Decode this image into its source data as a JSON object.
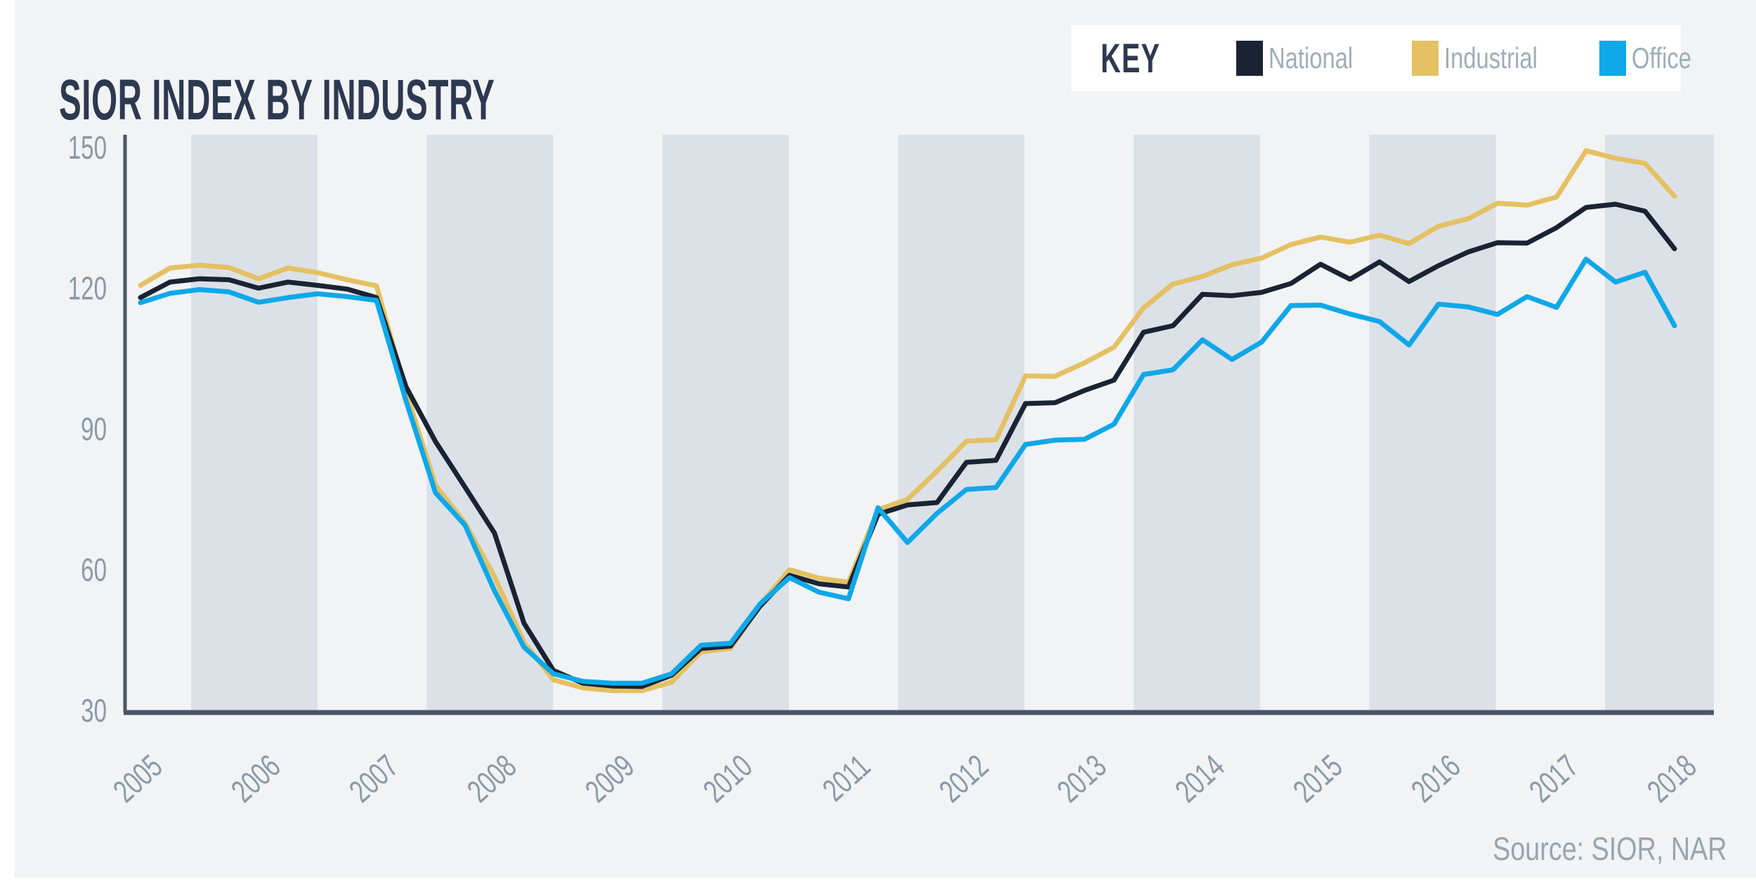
{
  "header": {
    "title": "SIOR INDEX BY INDUSTRY"
  },
  "key": {
    "label": "KEY",
    "items": [
      {
        "name": "National",
        "color": "#1a2333"
      },
      {
        "name": "Industrial",
        "color": "#e4c162"
      },
      {
        "name": "Office",
        "color": "#0fa8e8"
      }
    ]
  },
  "footer": {
    "source": "Source: SIOR, NAR"
  },
  "colors": {
    "background": "#f1f3f5",
    "left_margin": "#ffffff",
    "year_band": "#dce1e8",
    "axis": "#4a5569",
    "tick_label": "#8b99a7",
    "title_text": "#2c3950",
    "legend_text": "#9fadb9",
    "source_text": "#98a5b0"
  },
  "chart_data": {
    "type": "line",
    "title": "SIOR INDEX BY INDUSTRY",
    "xlabel": "",
    "ylabel": "",
    "x_unit": "quarterly",
    "x_start": "2005 Q1",
    "x_end": "2018 Q1",
    "x_tick_labels": [
      "2005",
      "2006",
      "2007",
      "2008",
      "2009",
      "2010",
      "2011",
      "2012",
      "2013",
      "2014",
      "2015",
      "2016",
      "2017",
      "2018"
    ],
    "y_ticks": [
      150,
      120,
      90,
      60,
      30
    ],
    "ylim": [
      30,
      150
    ],
    "grid": "alternating vertical year bands, no gridlines",
    "legend_position": "top-right",
    "series": [
      {
        "name": "National",
        "color": "#1a2333",
        "values": [
          118.0,
          121.3,
          122.0,
          121.8,
          120.0,
          121.3,
          120.6,
          119.8,
          118.0,
          99.0,
          87.3,
          77.6,
          67.8,
          48.6,
          38.5,
          35.8,
          35.2,
          35.1,
          37.5,
          43.2,
          43.7,
          52.2,
          58.8,
          57.0,
          56.3,
          71.8,
          73.8,
          74.3,
          82.9,
          83.3,
          95.4,
          95.6,
          98.2,
          100.4,
          110.6,
          112.0,
          118.7,
          118.4,
          119.1,
          121.0,
          125.1,
          121.9,
          125.6,
          121.4,
          124.8,
          127.7,
          129.7,
          129.6,
          132.9,
          137.2,
          137.9,
          136.4,
          128.4
        ]
      },
      {
        "name": "Industrial",
        "color": "#e4c162",
        "values": [
          120.6,
          124.3,
          124.9,
          124.4,
          122.0,
          124.3,
          123.3,
          121.8,
          120.5,
          98.0,
          78.0,
          70.0,
          58.5,
          44.5,
          36.5,
          34.8,
          34.2,
          34.2,
          36.0,
          42.5,
          43.2,
          52.5,
          60.0,
          58.2,
          57.3,
          72.8,
          75.0,
          81.0,
          87.4,
          87.7,
          101.3,
          101.2,
          104.1,
          107.4,
          115.8,
          120.9,
          122.5,
          125.0,
          126.4,
          129.3,
          130.9,
          129.8,
          131.3,
          129.5,
          133.2,
          134.8,
          138.1,
          137.7,
          139.4,
          149.3,
          147.7,
          146.6,
          139.6
        ]
      },
      {
        "name": "Office",
        "color": "#0fa8e8",
        "values": [
          116.9,
          118.9,
          119.7,
          119.2,
          117.0,
          118.0,
          118.8,
          118.2,
          117.4,
          96.0,
          76.4,
          69.5,
          55.5,
          43.5,
          37.8,
          36.2,
          35.8,
          35.8,
          37.8,
          43.9,
          44.3,
          52.7,
          58.3,
          55.2,
          53.8,
          73.2,
          65.8,
          72.0,
          77.1,
          77.5,
          86.7,
          87.6,
          87.8,
          91.0,
          101.6,
          102.6,
          109.0,
          104.8,
          108.5,
          116.3,
          116.4,
          114.5,
          112.9,
          107.9,
          116.6,
          116.0,
          114.4,
          118.2,
          115.9,
          126.2,
          121.3,
          123.4,
          112.0
        ]
      }
    ],
    "source": "Source: SIOR, NAR"
  }
}
